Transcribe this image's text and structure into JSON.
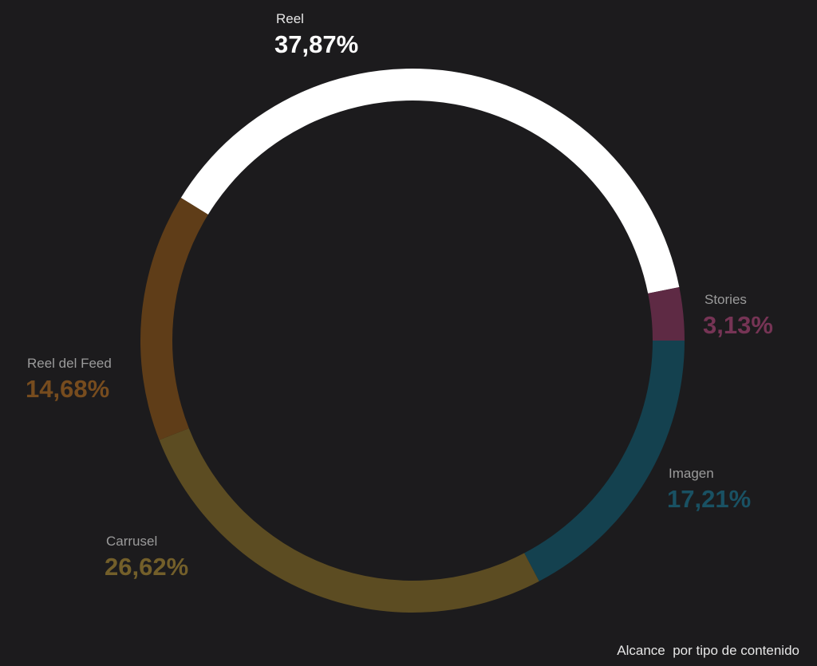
{
  "chart_data": {
    "type": "pie",
    "donut": true,
    "categories": [
      "Reel",
      "Stories",
      "Imagen",
      "Carrusel",
      "Reel del Feed"
    ],
    "values": [
      37.87,
      3.13,
      17.21,
      26.62,
      14.68
    ],
    "value_labels": [
      "37,87%",
      "3,13%",
      "17,21%",
      "26,62%",
      "14,68%"
    ],
    "colors": [
      "#ffffff",
      "#5e2a44",
      "#14414f",
      "#5c4c22",
      "#5f3d18"
    ],
    "caption": "Alcance  por tipo de contenido"
  }
}
